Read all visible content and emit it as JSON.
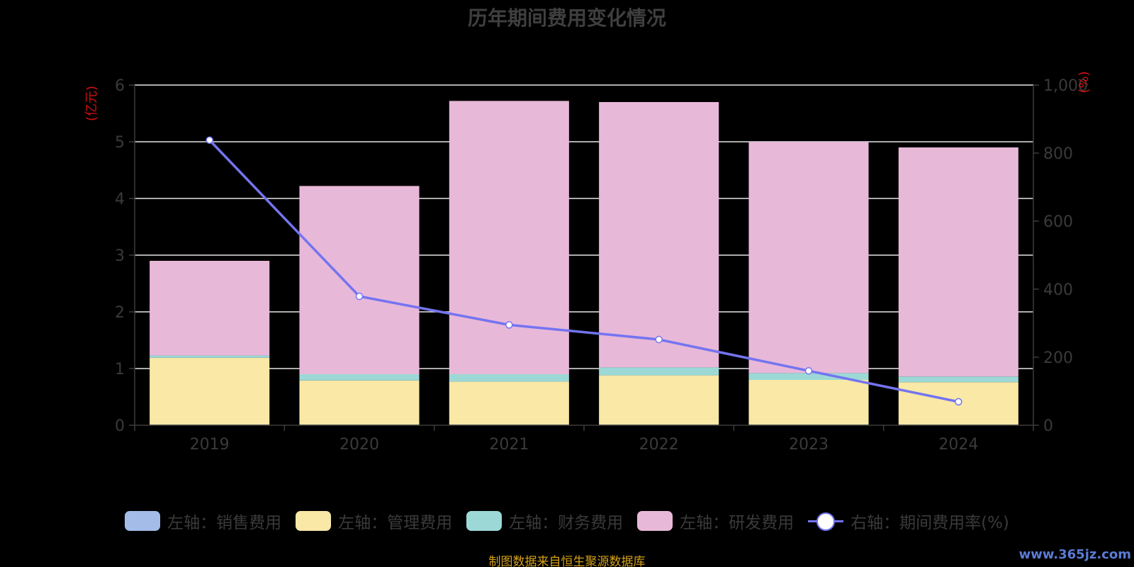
{
  "colors": {
    "background": "#000000",
    "sales": "#a3bde8",
    "admin": "#f9e8a6",
    "finance": "#9cd9d6",
    "rnd": "#e8b8d9",
    "rate_line": "#7474f0",
    "axis_unit": "#d01010",
    "grid": "#e6e6e6",
    "axis_text": "#3a3a3a"
  },
  "title": "历年期间费用变化情况",
  "source": "制图数据来自恒生聚源数据库",
  "watermark": "www.365jz.com",
  "chart_data": {
    "type": "bar",
    "stacked": true,
    "title": "历年期间费用变化情况",
    "categories": [
      "2019",
      "2020",
      "2021",
      "2022",
      "2023",
      "2024"
    ],
    "y_left": {
      "unit": "(亿元)",
      "range": [
        0,
        6
      ],
      "ticks": [
        "0",
        "1",
        "2",
        "3",
        "4",
        "5",
        "6"
      ]
    },
    "y_right": {
      "unit": "(%)",
      "range": [
        0,
        1000
      ],
      "ticks": [
        "0",
        "200",
        "400",
        "600",
        "800",
        "1,000"
      ]
    },
    "grid": true,
    "legend_position": "bottom",
    "series": [
      {
        "name": "左轴：销售费用",
        "axis": "left",
        "type": "bar",
        "color": "#a3bde8",
        "values": [
          0.01,
          0.01,
          0.01,
          0.01,
          0.01,
          0.01
        ]
      },
      {
        "name": "左轴：管理费用",
        "axis": "left",
        "type": "bar",
        "color": "#f9e8a6",
        "values": [
          1.18,
          0.78,
          0.76,
          0.87,
          0.79,
          0.75
        ]
      },
      {
        "name": "左轴：财务费用",
        "axis": "left",
        "type": "bar",
        "color": "#9cd9d6",
        "values": [
          0.04,
          0.11,
          0.13,
          0.14,
          0.12,
          0.1
        ]
      },
      {
        "name": "左轴：研发费用",
        "axis": "left",
        "type": "bar",
        "color": "#e8b8d9",
        "values": [
          1.67,
          3.32,
          4.82,
          4.68,
          4.08,
          4.04
        ]
      },
      {
        "name": "右轴：期间费用率(%)",
        "axis": "right",
        "type": "line",
        "color": "#7474f0",
        "values": [
          838,
          379,
          295,
          252,
          160,
          69
        ]
      }
    ]
  }
}
